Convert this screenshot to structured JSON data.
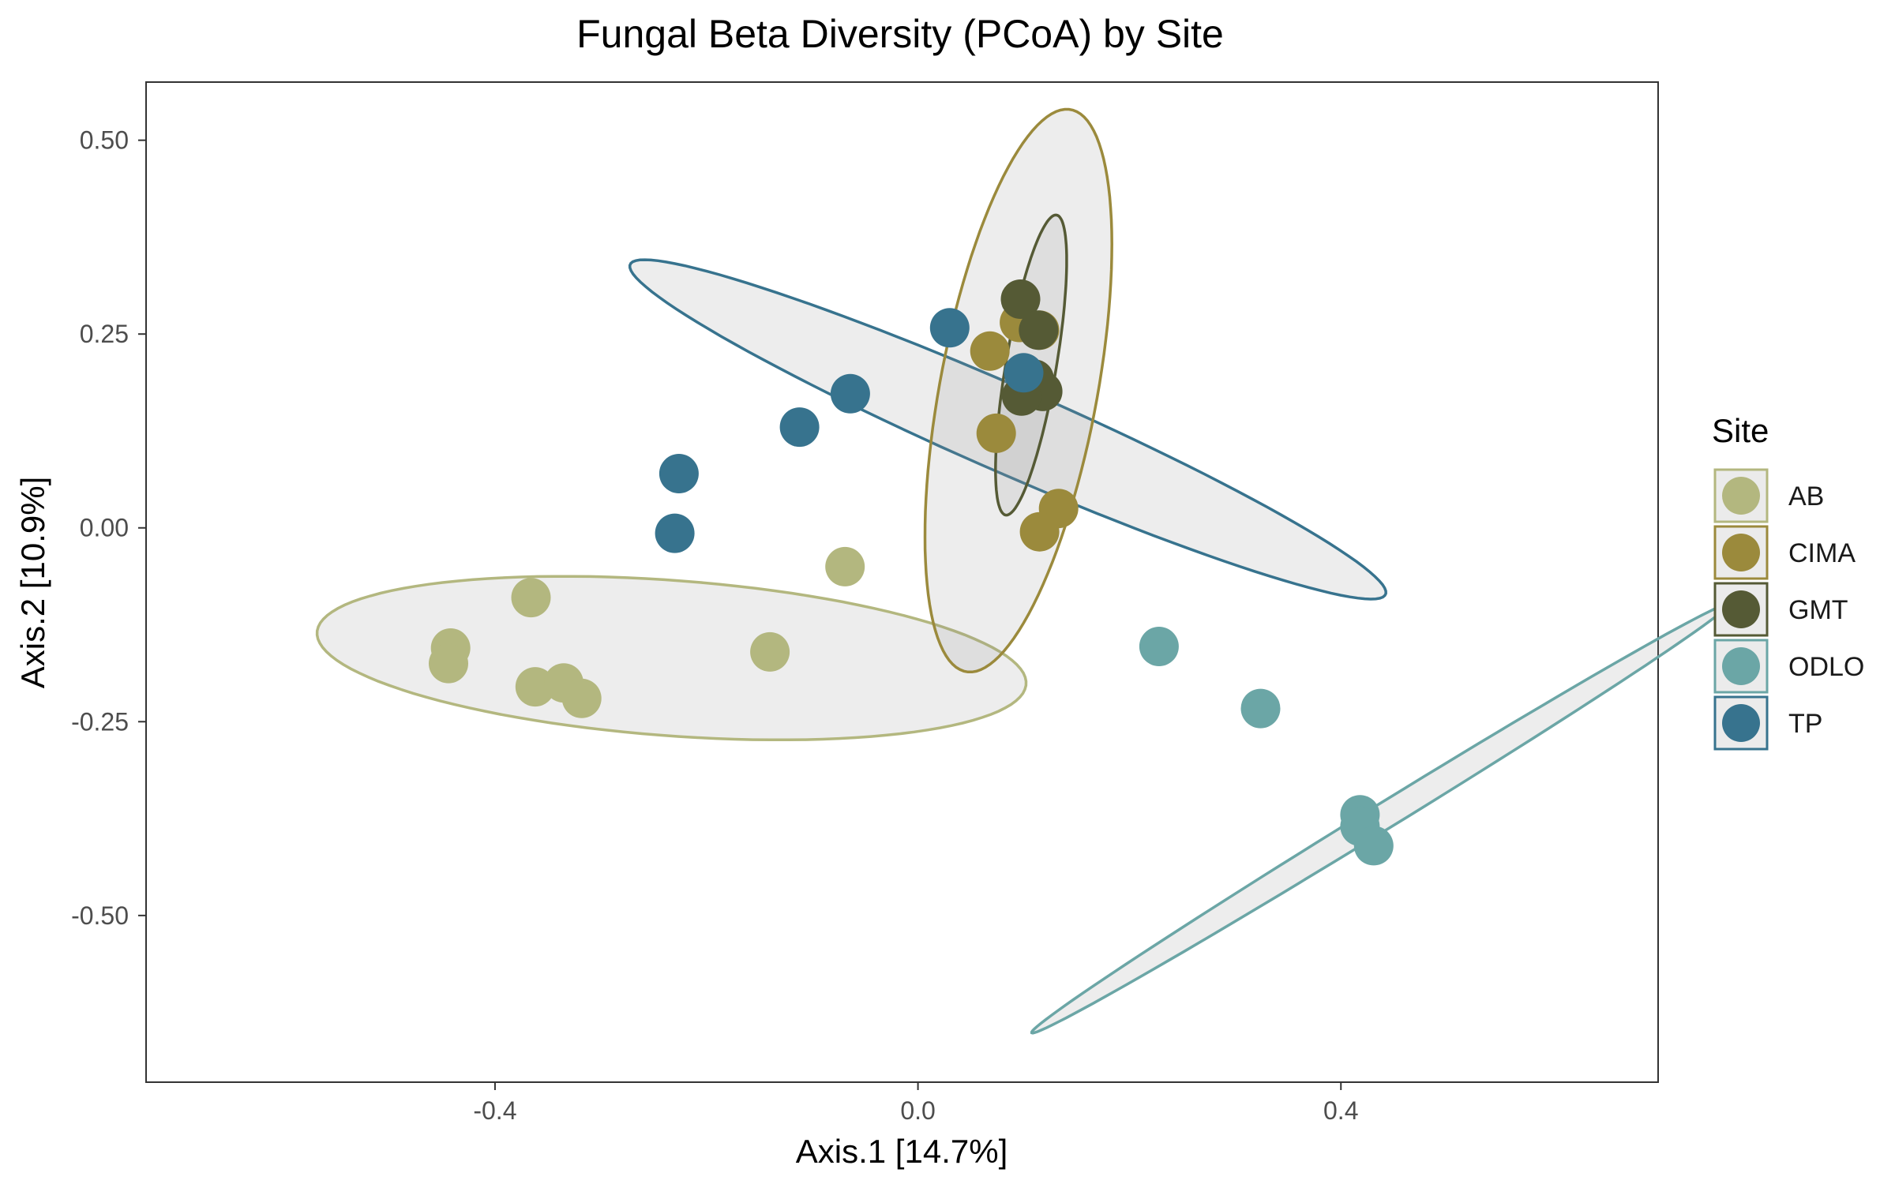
{
  "chart_data": {
    "type": "scatter",
    "title": "Fungal Beta Diversity (PCoA) by Site",
    "xlabel": "Axis.1   [14.7%]",
    "ylabel": "Axis.2   [10.9%]",
    "xlim": [
      -0.73,
      0.7
    ],
    "ylim": [
      -0.715,
      0.575
    ],
    "x_ticks": [
      -0.4,
      0.0,
      0.4
    ],
    "x_tick_labels": [
      "-0.4",
      "0.0",
      "0.4"
    ],
    "y_ticks": [
      0.5,
      0.25,
      0.0,
      -0.25,
      -0.5
    ],
    "y_tick_labels": [
      "0.50",
      "0.25",
      "0.00",
      "-0.25",
      "-0.50"
    ],
    "grid": false,
    "legend_title": "Site",
    "legend_position": "right",
    "series": [
      {
        "name": "AB",
        "color": "#b3b77f",
        "points": [
          {
            "x": -0.442,
            "y": -0.155
          },
          {
            "x": -0.444,
            "y": -0.175
          },
          {
            "x": -0.366,
            "y": -0.09
          },
          {
            "x": -0.362,
            "y": -0.205
          },
          {
            "x": -0.335,
            "y": -0.2
          },
          {
            "x": -0.318,
            "y": -0.22
          },
          {
            "x": -0.14,
            "y": -0.16
          },
          {
            "x": -0.069,
            "y": -0.05
          }
        ]
      },
      {
        "name": "CIMA",
        "color": "#9b8a3c",
        "points": [
          {
            "x": 0.068,
            "y": 0.228
          },
          {
            "x": 0.074,
            "y": 0.122
          },
          {
            "x": 0.096,
            "y": 0.265
          },
          {
            "x": 0.115,
            "y": 0.255
          },
          {
            "x": 0.133,
            "y": 0.025
          },
          {
            "x": 0.115,
            "y": -0.005
          }
        ]
      },
      {
        "name": "GMT",
        "color": "#555a35",
        "points": [
          {
            "x": 0.097,
            "y": 0.295
          },
          {
            "x": 0.114,
            "y": 0.255
          },
          {
            "x": 0.11,
            "y": 0.192
          },
          {
            "x": 0.118,
            "y": 0.176
          },
          {
            "x": 0.098,
            "y": 0.17
          }
        ]
      },
      {
        "name": "ODLO",
        "color": "#6ba6a6",
        "points": [
          {
            "x": 0.228,
            "y": -0.153
          },
          {
            "x": 0.324,
            "y": -0.233
          },
          {
            "x": 0.418,
            "y": -0.37
          },
          {
            "x": 0.418,
            "y": -0.385
          },
          {
            "x": 0.431,
            "y": -0.41
          }
        ]
      },
      {
        "name": "TP",
        "color": "#37738e",
        "points": [
          {
            "x": -0.226,
            "y": 0.07
          },
          {
            "x": -0.23,
            "y": -0.007
          },
          {
            "x": -0.112,
            "y": 0.13
          },
          {
            "x": -0.064,
            "y": 0.173
          },
          {
            "x": 0.03,
            "y": 0.258
          },
          {
            "x": 0.1,
            "y": 0.2
          }
        ]
      }
    ],
    "ellipses": [
      {
        "series": "AB",
        "cx": -0.233,
        "cy": -0.168,
        "rx": 0.337,
        "ry": 0.1,
        "angle_deg": -6,
        "color": "#b3b77f"
      },
      {
        "series": "TP",
        "cx": 0.085,
        "cy": 0.127,
        "rx": 0.416,
        "ry": 0.052,
        "angle_deg": -31,
        "color": "#37738e"
      },
      {
        "series": "CIMA",
        "cx": 0.095,
        "cy": 0.177,
        "rx": 0.366,
        "ry": 0.075,
        "angle_deg": 82.5,
        "color": "#9b8a3c"
      },
      {
        "series": "GMT",
        "cx": 0.107,
        "cy": 0.21,
        "rx": 0.195,
        "ry": 0.024,
        "angle_deg": 83,
        "color": "#555a35"
      },
      {
        "series": "ODLO",
        "cx": 0.437,
        "cy": -0.375,
        "rx": 0.43,
        "ry": 0.015,
        "angle_deg": 40,
        "color": "#6ba6a6"
      }
    ]
  }
}
